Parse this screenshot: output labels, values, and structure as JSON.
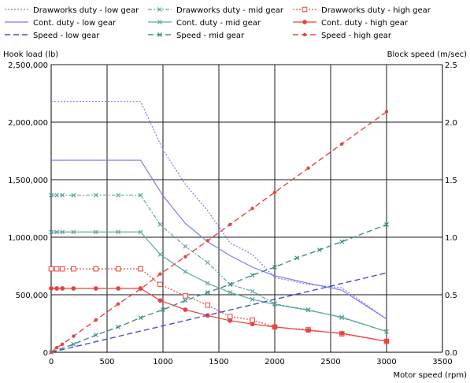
{
  "chart_data": {
    "type": "line",
    "title": "",
    "xlabel": "Motor speed (rpm)",
    "ylabel": "Hook load (lb)",
    "y2label": "Block speed (m/sec)",
    "xlim": [
      0,
      3500
    ],
    "ylim": [
      0,
      2500000
    ],
    "y2lim": [
      0,
      2.5
    ],
    "x_ticks": [
      0,
      500,
      1000,
      1500,
      2000,
      2500,
      3000,
      3500
    ],
    "x_tick_labels": [
      "0",
      "500",
      "1000",
      "1500",
      "2000",
      "2500",
      "3000",
      "3500"
    ],
    "y_ticks": [
      0,
      500000,
      1000000,
      1500000,
      2000000,
      2500000
    ],
    "y_tick_labels": [
      "0",
      "500,000",
      "1,000,000",
      "1,500,000",
      "2,000,000",
      "2,500,000"
    ],
    "y2_ticks": [
      0,
      0.5,
      1,
      1.5,
      2,
      2.5
    ],
    "y2_tick_labels": [
      "0.0",
      "0.5",
      "1.0",
      "1.5",
      "2.0",
      "2.5"
    ],
    "grid": true,
    "legend_position": "top",
    "series": [
      {
        "name": "Drawworks duty - low gear",
        "axis": "left",
        "color": "#7b7bea",
        "style": "dotted",
        "marker": "none",
        "x": [
          0,
          50,
          100,
          200,
          400,
          600,
          800,
          1000,
          1200,
          1400,
          1600,
          1800,
          2000,
          2300,
          2600,
          3000
        ],
        "y": [
          2180000,
          2180000,
          2180000,
          2180000,
          2180000,
          2180000,
          2180000,
          1760000,
          1460000,
          1230000,
          950000,
          850000,
          650000,
          590000,
          560000,
          290000
        ]
      },
      {
        "name": "Drawworks duty - mid gear",
        "axis": "left",
        "color": "#5fa79d",
        "style": "dashdot",
        "marker": "x",
        "x": [
          0,
          50,
          100,
          200,
          400,
          600,
          800,
          975,
          1200,
          1400,
          1600,
          1800,
          2000,
          2300,
          2600,
          3000
        ],
        "y": [
          1365000,
          1365000,
          1365000,
          1365000,
          1365000,
          1365000,
          1365000,
          1110000,
          920000,
          780000,
          590000,
          530000,
          420000,
          370000,
          300000,
          180000
        ]
      },
      {
        "name": "Drawworks duty - high gear",
        "axis": "left",
        "color": "#e8433f",
        "style": "dotted",
        "marker": "square",
        "x": [
          0,
          50,
          100,
          200,
          400,
          600,
          800,
          975,
          1200,
          1400,
          1600,
          1800,
          2000,
          2300,
          2600,
          3000
        ],
        "y": [
          725000,
          725000,
          725000,
          725000,
          725000,
          725000,
          725000,
          590000,
          490000,
          410000,
          310000,
          280000,
          220000,
          195000,
          160000,
          95000
        ]
      },
      {
        "name": "Cont. duty - low gear",
        "axis": "left",
        "color": "#7b7bea",
        "style": "solid",
        "marker": "none",
        "x": [
          0,
          800,
          1000,
          1200,
          1400,
          1600,
          1800,
          2000,
          2300,
          2600,
          3000
        ],
        "y": [
          1670000,
          1670000,
          1360000,
          1120000,
          960000,
          840000,
          740000,
          665000,
          600000,
          540000,
          290000
        ]
      },
      {
        "name": "Cont. duty - mid gear",
        "axis": "left",
        "color": "#5fa79d",
        "style": "solid",
        "marker": "x",
        "x": [
          0,
          50,
          100,
          200,
          400,
          600,
          800,
          975,
          1200,
          1400,
          1600,
          1800,
          2000,
          2300,
          2600,
          3000
        ],
        "y": [
          1045000,
          1045000,
          1045000,
          1045000,
          1045000,
          1045000,
          1045000,
          850000,
          700000,
          600000,
          520000,
          460000,
          415000,
          365000,
          305000,
          180000
        ]
      },
      {
        "name": "Cont. duty - high gear",
        "axis": "left",
        "color": "#e8433f",
        "style": "solid",
        "marker": "circle",
        "x": [
          0,
          50,
          100,
          200,
          400,
          600,
          800,
          975,
          1200,
          1400,
          1600,
          1800,
          2000,
          2300,
          2600,
          3000
        ],
        "y": [
          555000,
          555000,
          555000,
          555000,
          555000,
          555000,
          555000,
          450000,
          370000,
          320000,
          275000,
          245000,
          220000,
          190000,
          165000,
          95000
        ]
      },
      {
        "name": "Speed - low gear",
        "axis": "right",
        "color": "#4a4ad9",
        "style": "dashed",
        "marker": "none",
        "x": [
          0,
          3000
        ],
        "y": [
          0,
          0.69
        ]
      },
      {
        "name": "Speed - mid gear",
        "axis": "right",
        "color": "#3d8f86",
        "style": "dashed",
        "marker": "x",
        "x": [
          0,
          200,
          400,
          600,
          800,
          1000,
          1200,
          1400,
          1600,
          1800,
          2000,
          2200,
          2400,
          2600,
          3000
        ],
        "y": [
          0,
          0.07,
          0.15,
          0.22,
          0.3,
          0.37,
          0.45,
          0.52,
          0.59,
          0.67,
          0.74,
          0.82,
          0.89,
          0.96,
          1.11
        ]
      },
      {
        "name": "Speed - high gear",
        "axis": "right",
        "color": "#e8433f",
        "style": "dashed",
        "marker": "dot",
        "x": [
          0,
          50,
          100,
          200,
          400,
          600,
          800,
          975,
          1200,
          1400,
          1600,
          1800,
          2000,
          2300,
          2600,
          3000
        ],
        "y": [
          0,
          0.04,
          0.07,
          0.14,
          0.28,
          0.42,
          0.55,
          0.68,
          0.83,
          0.97,
          1.11,
          1.25,
          1.39,
          1.6,
          1.81,
          2.09
        ]
      }
    ]
  }
}
